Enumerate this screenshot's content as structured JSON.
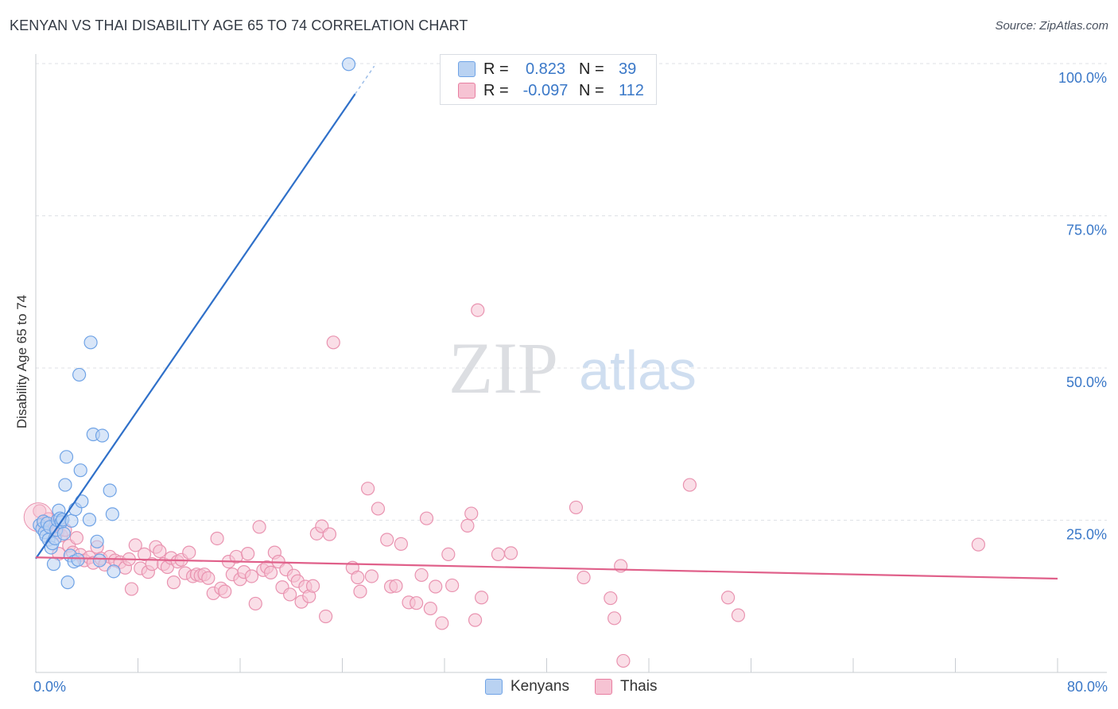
{
  "title": "KENYAN VS THAI DISABILITY AGE 65 TO 74 CORRELATION CHART",
  "source": "Source: ZipAtlas.com",
  "watermark": {
    "zip": "ZIP",
    "atlas": "atlas"
  },
  "legend": {
    "series": [
      {
        "name": "Kenyans",
        "r_label": "R =",
        "r_value": "0.823",
        "n_label": "N =",
        "n_value": "39",
        "color": "#6fa3e6",
        "fill": "#b9d2f2"
      },
      {
        "name": "Thais",
        "r_label": "R =",
        "r_value": "-0.097",
        "n_label": "N =",
        "n_value": "112",
        "color": "#e87fa1",
        "fill": "#f6c3d3"
      }
    ]
  },
  "chart_data": {
    "type": "scatter",
    "title": "KENYAN VS THAI DISABILITY AGE 65 TO 74 CORRELATION CHART",
    "xlabel": "",
    "ylabel": "Disability Age 65 to 74",
    "xlim": [
      0,
      80
    ],
    "ylim": [
      0,
      100
    ],
    "x_tick_labels": [
      "0.0%",
      "80.0%"
    ],
    "y_tick_values": [
      25,
      50,
      75,
      100
    ],
    "y_tick_labels": [
      "25.0%",
      "50.0%",
      "75.0%",
      "100.0%"
    ],
    "grid": true,
    "series": [
      {
        "name": "Kenyans",
        "color": "#3a78c8",
        "fill": "#b9d2f2",
        "trend": {
          "x0": 0.0,
          "y0": 18.7,
          "x1": 25.0,
          "y1": 95.0,
          "dash_to_x": 26.5
        },
        "points": [
          [
            0.3,
            24.2
          ],
          [
            0.5,
            23.6
          ],
          [
            0.6,
            24.8
          ],
          [
            0.7,
            23.0
          ],
          [
            0.8,
            22.4
          ],
          [
            0.9,
            24.5
          ],
          [
            1.0,
            21.8
          ],
          [
            1.1,
            23.9
          ],
          [
            1.2,
            20.5
          ],
          [
            1.3,
            21.2
          ],
          [
            1.4,
            17.8
          ],
          [
            1.5,
            22.0
          ],
          [
            1.6,
            23.4
          ],
          [
            1.7,
            25.0
          ],
          [
            1.8,
            26.6
          ],
          [
            1.9,
            25.3
          ],
          [
            2.0,
            24.7
          ],
          [
            2.1,
            25.1
          ],
          [
            2.2,
            22.8
          ],
          [
            2.3,
            30.8
          ],
          [
            2.4,
            35.4
          ],
          [
            2.5,
            14.8
          ],
          [
            2.7,
            19.2
          ],
          [
            2.8,
            24.9
          ],
          [
            3.0,
            18.2
          ],
          [
            3.1,
            26.8
          ],
          [
            3.3,
            18.5
          ],
          [
            3.4,
            48.9
          ],
          [
            3.5,
            33.2
          ],
          [
            3.6,
            28.1
          ],
          [
            4.2,
            25.1
          ],
          [
            4.3,
            54.2
          ],
          [
            4.5,
            39.1
          ],
          [
            4.8,
            21.5
          ],
          [
            5.0,
            18.4
          ],
          [
            5.2,
            38.9
          ],
          [
            5.8,
            29.9
          ],
          [
            6.0,
            26.0
          ],
          [
            6.1,
            16.6
          ],
          [
            24.5,
            99.9
          ]
        ]
      },
      {
        "name": "Thais",
        "color": "#e0608a",
        "fill": "#f6c3d3",
        "trend": {
          "x0": 0.0,
          "y0": 18.9,
          "x1": 80.0,
          "y1": 15.4
        },
        "points": [
          [
            0.3,
            26.5
          ],
          [
            0.6,
            24.5
          ],
          [
            1.0,
            25.2
          ],
          [
            1.3,
            24.1
          ],
          [
            1.7,
            23.0
          ],
          [
            2.0,
            22.5
          ],
          [
            2.3,
            23.4
          ],
          [
            2.6,
            20.8
          ],
          [
            2.9,
            19.7
          ],
          [
            3.2,
            22.1
          ],
          [
            3.5,
            19.3
          ],
          [
            3.8,
            18.4
          ],
          [
            4.2,
            18.9
          ],
          [
            4.5,
            18.0
          ],
          [
            4.8,
            20.6
          ],
          [
            5.1,
            18.7
          ],
          [
            5.4,
            17.7
          ],
          [
            5.8,
            19.0
          ],
          [
            6.2,
            18.4
          ],
          [
            6.6,
            18.1
          ],
          [
            7.0,
            17.2
          ],
          [
            7.3,
            18.6
          ],
          [
            7.5,
            13.7
          ],
          [
            7.8,
            20.9
          ],
          [
            8.2,
            17.1
          ],
          [
            8.5,
            19.4
          ],
          [
            8.8,
            16.5
          ],
          [
            9.1,
            17.8
          ],
          [
            9.4,
            20.6
          ],
          [
            9.7,
            19.9
          ],
          [
            10.0,
            17.8
          ],
          [
            10.3,
            17.3
          ],
          [
            10.6,
            18.8
          ],
          [
            10.8,
            14.8
          ],
          [
            11.1,
            18.2
          ],
          [
            11.4,
            18.5
          ],
          [
            11.7,
            16.3
          ],
          [
            12.0,
            19.7
          ],
          [
            12.3,
            15.8
          ],
          [
            12.6,
            16.1
          ],
          [
            12.9,
            15.9
          ],
          [
            13.2,
            16.1
          ],
          [
            13.5,
            15.5
          ],
          [
            13.9,
            13.0
          ],
          [
            14.2,
            22.0
          ],
          [
            14.5,
            13.8
          ],
          [
            14.8,
            13.3
          ],
          [
            15.1,
            18.2
          ],
          [
            15.4,
            16.1
          ],
          [
            15.7,
            19.0
          ],
          [
            16.0,
            15.3
          ],
          [
            16.3,
            16.5
          ],
          [
            16.6,
            19.5
          ],
          [
            16.9,
            15.8
          ],
          [
            17.2,
            11.3
          ],
          [
            17.5,
            23.9
          ],
          [
            17.8,
            16.8
          ],
          [
            18.1,
            17.3
          ],
          [
            18.4,
            16.4
          ],
          [
            18.7,
            19.7
          ],
          [
            19.0,
            18.2
          ],
          [
            19.3,
            14.0
          ],
          [
            19.6,
            16.9
          ],
          [
            19.9,
            12.8
          ],
          [
            20.2,
            15.9
          ],
          [
            20.5,
            15.0
          ],
          [
            20.8,
            11.6
          ],
          [
            21.1,
            14.1
          ],
          [
            21.4,
            12.5
          ],
          [
            21.7,
            14.2
          ],
          [
            22.0,
            22.8
          ],
          [
            22.4,
            24.0
          ],
          [
            22.7,
            9.2
          ],
          [
            23.0,
            22.7
          ],
          [
            23.3,
            54.2
          ],
          [
            24.8,
            17.2
          ],
          [
            25.2,
            15.6
          ],
          [
            25.4,
            13.3
          ],
          [
            26.0,
            30.2
          ],
          [
            26.3,
            15.8
          ],
          [
            26.8,
            26.9
          ],
          [
            27.5,
            21.8
          ],
          [
            27.8,
            14.1
          ],
          [
            28.2,
            14.2
          ],
          [
            28.6,
            21.1
          ],
          [
            29.2,
            11.5
          ],
          [
            29.8,
            11.4
          ],
          [
            30.2,
            16.0
          ],
          [
            30.6,
            25.3
          ],
          [
            30.9,
            10.5
          ],
          [
            31.3,
            14.1
          ],
          [
            31.8,
            8.1
          ],
          [
            32.3,
            19.4
          ],
          [
            32.6,
            14.3
          ],
          [
            33.8,
            24.1
          ],
          [
            34.1,
            26.1
          ],
          [
            34.4,
            8.6
          ],
          [
            34.6,
            59.5
          ],
          [
            34.9,
            12.3
          ],
          [
            36.2,
            19.4
          ],
          [
            37.2,
            19.6
          ],
          [
            42.3,
            27.1
          ],
          [
            42.9,
            15.6
          ],
          [
            45.0,
            12.2
          ],
          [
            45.3,
            8.9
          ],
          [
            45.8,
            17.5
          ],
          [
            46.0,
            1.9
          ],
          [
            51.2,
            30.8
          ],
          [
            54.2,
            12.3
          ],
          [
            55.0,
            9.4
          ],
          [
            73.8,
            21.0
          ],
          [
            1.8,
            19.5
          ]
        ]
      }
    ]
  }
}
